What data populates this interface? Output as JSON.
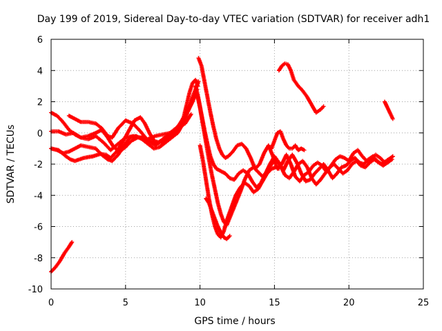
{
  "chart_data": {
    "type": "scatter",
    "title": "Day 199 of 2019, Sidereal Day-to-day VTEC variation (SDTVAR) for receiver adh1",
    "xlabel": "GPS time / hours",
    "ylabel": "SDTVAR / TECUs",
    "xlim": [
      0,
      25
    ],
    "ylim": [
      -10,
      6
    ],
    "x_ticks": [
      0,
      5,
      10,
      15,
      20,
      25
    ],
    "y_ticks": [
      -10,
      -8,
      -6,
      -4,
      -2,
      0,
      2,
      4,
      6
    ],
    "grid": true,
    "marker": "plus",
    "color": "#ff0000",
    "series": [
      {
        "x": [
          0,
          0.3,
          0.6,
          0.9,
          1.2,
          1.4
        ],
        "y": [
          -8.9,
          -8.6,
          -8.2,
          -7.7,
          -7.3,
          -7.0
        ]
      },
      {
        "x": [
          0,
          0.5,
          1.0,
          1.3,
          1.6,
          2.2,
          2.8,
          3.3,
          3.7,
          4.0,
          4.4,
          4.8,
          5.2,
          5.6,
          6.0,
          6.3,
          6.6,
          6.9,
          7.2,
          7.6,
          8.0,
          8.3,
          8.6,
          8.9,
          9.1,
          9.3,
          9.5,
          9.7,
          9.85
        ],
        "y": [
          -1.0,
          -1.1,
          -1.5,
          -1.7,
          -1.8,
          -1.6,
          -1.5,
          -1.35,
          -1.4,
          -1.6,
          -1.2,
          -0.6,
          0.1,
          0.8,
          1.0,
          0.6,
          0.0,
          -0.5,
          -0.6,
          -0.4,
          -0.2,
          0.1,
          0.5,
          1.0,
          1.8,
          2.6,
          3.2,
          3.4,
          3.0
        ]
      },
      {
        "x": [
          0,
          0.4,
          0.8,
          1.2,
          1.6,
          2.0,
          2.5,
          3.0,
          3.4,
          3.8,
          4.1,
          4.5,
          4.9,
          5.3,
          5.7,
          6.1,
          6.5,
          6.9,
          7.3,
          7.7,
          8.1,
          8.5,
          8.8,
          9.1,
          9.4,
          9.7,
          9.9
        ],
        "y": [
          -1.0,
          -1.1,
          -1.3,
          -1.2,
          -1.0,
          -0.8,
          -0.9,
          -1.0,
          -1.4,
          -1.7,
          -1.8,
          -1.4,
          -0.8,
          -0.3,
          -0.2,
          -0.4,
          -0.7,
          -1.0,
          -0.9,
          -0.6,
          -0.3,
          0.0,
          0.5,
          1.2,
          2.0,
          2.8,
          3.3
        ]
      },
      {
        "x": [
          0,
          0.4,
          0.8,
          1.2,
          1.6,
          2.0,
          2.5,
          3.0,
          3.4,
          3.8,
          4.2,
          4.6,
          5.0,
          5.4,
          5.8,
          6.2,
          6.6,
          7.0,
          7.4,
          7.8,
          8.2,
          8.6,
          9.0
        ],
        "y": [
          1.3,
          1.1,
          0.7,
          0.2,
          -0.1,
          -0.3,
          -0.2,
          0.0,
          0.2,
          -0.3,
          -0.9,
          -1.2,
          -0.9,
          -0.5,
          -0.3,
          -0.3,
          -0.5,
          -0.7,
          -0.6,
          -0.3,
          0.0,
          0.3,
          0.8
        ]
      },
      {
        "x": [
          0,
          0.5,
          1.0,
          1.5,
          2.0,
          2.5,
          3.0,
          3.5,
          4.0,
          4.5,
          5.0,
          5.5,
          6.0,
          6.5,
          7.0,
          7.5,
          8.0,
          8.5,
          9.0,
          9.5,
          9.8
        ],
        "y": [
          0.1,
          0.1,
          -0.1,
          0.0,
          -0.3,
          -0.4,
          -0.2,
          -0.6,
          -1.1,
          -0.7,
          -0.3,
          -0.2,
          -0.3,
          -0.4,
          -0.2,
          -0.1,
          0.0,
          0.4,
          1.0,
          2.0,
          2.8
        ]
      },
      {
        "x": [
          1.2,
          1.6,
          2.0,
          2.5,
          3.0,
          3.4,
          3.8,
          4.1,
          4.5,
          5.0,
          5.5,
          6.0,
          6.5,
          7.0,
          7.5,
          8.0,
          8.5,
          9.0,
          9.4
        ],
        "y": [
          1.1,
          0.9,
          0.7,
          0.7,
          0.6,
          0.3,
          -0.2,
          -0.3,
          0.3,
          0.8,
          0.6,
          0.1,
          -0.5,
          -0.8,
          -0.4,
          0.0,
          0.3,
          0.6,
          1.2
        ]
      },
      {
        "x": [
          9.9,
          10.1,
          10.3,
          10.5,
          10.7,
          10.9,
          11.1,
          11.3,
          11.5,
          11.7,
          11.9,
          12.2,
          12.5,
          12.8,
          13.1,
          13.4,
          13.7,
          14.0,
          14.3,
          14.6,
          14.9,
          15.2,
          15.5,
          15.8,
          16.1,
          16.4,
          16.7,
          17.0,
          17.3,
          17.6,
          17.9,
          18.2,
          18.5,
          18.8,
          19.1,
          19.4,
          19.7,
          20.0,
          20.3,
          20.6,
          20.9,
          21.2,
          21.5,
          21.8,
          22.1,
          22.4,
          22.7,
          22.95
        ],
        "y": [
          4.8,
          4.3,
          3.3,
          2.3,
          1.3,
          0.4,
          -0.4,
          -1.0,
          -1.4,
          -1.6,
          -1.5,
          -1.2,
          -0.8,
          -0.7,
          -1.0,
          -1.6,
          -2.3,
          -2.0,
          -1.3,
          -0.8,
          -1.5,
          -2.3,
          -2.0,
          -1.4,
          -2.0,
          -2.8,
          -3.1,
          -2.7,
          -2.5,
          -2.1,
          -1.9,
          -2.1,
          -2.5,
          -2.1,
          -1.7,
          -1.5,
          -1.6,
          -1.8,
          -1.3,
          -1.1,
          -1.5,
          -1.8,
          -1.6,
          -1.4,
          -1.6,
          -1.9,
          -1.7,
          -1.5
        ]
      },
      {
        "x": [
          9.7,
          9.9,
          10.1,
          10.3,
          10.5,
          10.7,
          10.9,
          11.1,
          11.3,
          11.5,
          11.7,
          12.0,
          12.3,
          12.6,
          12.9,
          13.2,
          13.5,
          13.8,
          14.1,
          14.4,
          14.7,
          15.0,
          15.3,
          15.6,
          15.9,
          16.2,
          16.5,
          16.8,
          17.1,
          17.4,
          17.7,
          18.0,
          18.3,
          18.6,
          18.9,
          19.2,
          19.5,
          19.8,
          20.1,
          20.4,
          20.7,
          21.0,
          21.3,
          21.6,
          21.9,
          22.2,
          22.5,
          22.8,
          22.95
        ],
        "y": [
          3.0,
          2.2,
          1.2,
          0.2,
          -0.7,
          -1.5,
          -2.0,
          -2.3,
          -2.4,
          -2.5,
          -2.6,
          -2.9,
          -3.0,
          -2.6,
          -2.4,
          -2.6,
          -3.1,
          -3.5,
          -3.2,
          -2.6,
          -2.0,
          -1.5,
          -1.9,
          -2.4,
          -1.8,
          -1.4,
          -1.9,
          -2.6,
          -3.1,
          -3.0,
          -2.6,
          -2.3,
          -2.0,
          -2.4,
          -2.9,
          -2.6,
          -2.2,
          -2.1,
          -1.8,
          -1.6,
          -1.9,
          -2.0,
          -1.7,
          -1.5,
          -1.8,
          -2.0,
          -1.8,
          -1.6,
          -1.5
        ]
      },
      {
        "x": [
          9.8,
          10.0,
          10.2,
          10.4,
          10.6,
          10.8,
          11.0,
          11.2,
          11.4,
          11.6,
          11.8,
          12.1,
          12.4,
          12.7,
          13.0,
          13.3,
          13.6,
          13.9,
          14.2,
          14.5,
          14.8,
          15.1,
          15.4,
          15.7,
          16.0,
          16.3,
          16.6,
          16.9,
          17.2,
          17.5,
          17.8,
          18.1,
          18.4,
          18.7,
          19.0,
          19.3,
          19.6,
          19.9,
          20.2,
          20.5,
          20.8,
          21.1,
          21.4,
          21.7,
          22.0,
          22.3,
          22.6,
          22.9
        ],
        "y": [
          2.5,
          1.6,
          0.5,
          -0.6,
          -1.7,
          -2.7,
          -3.6,
          -4.5,
          -5.2,
          -5.7,
          -5.9,
          -5.2,
          -4.5,
          -3.8,
          -3.0,
          -2.4,
          -2.2,
          -2.5,
          -2.8,
          -2.5,
          -2.0,
          -1.7,
          -2.1,
          -2.7,
          -2.9,
          -2.5,
          -2.0,
          -1.8,
          -2.2,
          -2.9,
          -3.3,
          -3.0,
          -2.6,
          -2.2,
          -2.0,
          -2.3,
          -2.6,
          -2.4,
          -2.0,
          -1.8,
          -2.1,
          -2.2,
          -1.9,
          -1.7,
          -1.9,
          -2.1,
          -1.9,
          -1.7
        ]
      },
      {
        "x": [
          10.0,
          10.2,
          10.4,
          10.6,
          10.8,
          11.0,
          11.2,
          11.4,
          11.6,
          11.8,
          12.1,
          12.4,
          12.7,
          13.0,
          13.3,
          13.6,
          13.9,
          14.2,
          14.5,
          14.8,
          15.1,
          15.3
        ],
        "y": [
          -0.8,
          -1.8,
          -3.0,
          -4.2,
          -5.2,
          -6.0,
          -6.5,
          -6.7,
          -6.3,
          -5.6,
          -4.8,
          -4.0,
          -3.5,
          -3.2,
          -3.4,
          -3.8,
          -3.6,
          -3.1,
          -2.6,
          -2.3,
          -2.2,
          -2.3
        ]
      },
      {
        "x": [
          10.4,
          10.6,
          10.8,
          11.0,
          11.2,
          11.4,
          11.6,
          11.8,
          12.0
        ],
        "y": [
          -4.2,
          -4.5,
          -5.0,
          -5.5,
          -6.0,
          -6.4,
          -6.7,
          -6.8,
          -6.6
        ]
      },
      {
        "x": [
          14.8,
          15.0,
          15.2,
          15.4,
          15.6,
          15.8,
          16.0,
          16.2,
          16.4,
          16.6,
          16.8,
          17.0
        ],
        "y": [
          -1.0,
          -0.5,
          0.0,
          0.1,
          -0.4,
          -0.8,
          -1.0,
          -1.0,
          -0.8,
          -1.1,
          -1.0,
          -1.1
        ]
      },
      {
        "x": [
          15.3,
          15.5,
          15.7,
          15.9,
          16.1,
          16.3,
          16.6,
          16.9,
          17.2,
          17.5,
          17.8,
          18.1,
          18.3
        ],
        "y": [
          4.0,
          4.3,
          4.45,
          4.4,
          4.0,
          3.4,
          3.0,
          2.7,
          2.3,
          1.8,
          1.3,
          1.5,
          1.7
        ]
      },
      {
        "x": [
          22.4,
          22.6,
          22.8,
          22.95
        ],
        "y": [
          2.0,
          1.6,
          1.2,
          0.9
        ]
      }
    ]
  }
}
